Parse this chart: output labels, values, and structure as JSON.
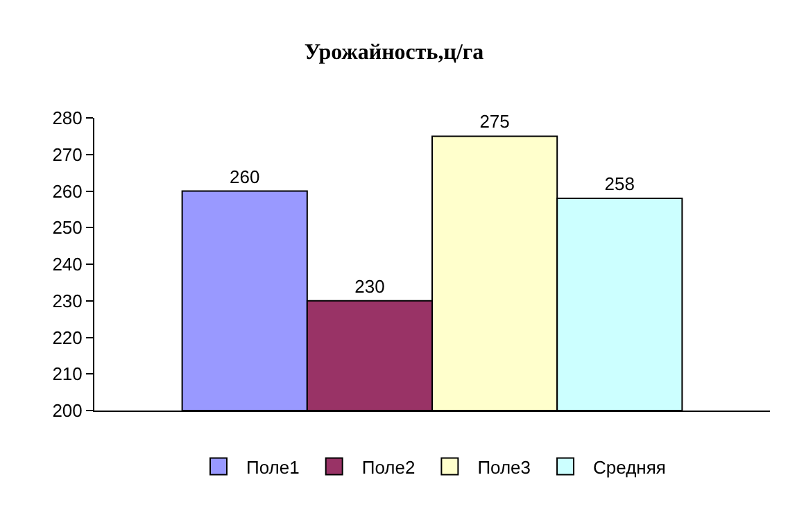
{
  "chart_data": {
    "type": "bar",
    "title": "Урожайность,ц/га",
    "categories": [
      null
    ],
    "series": [
      {
        "name": "Поле1",
        "color": "#9999ff",
        "values": [
          260
        ]
      },
      {
        "name": "Поле2",
        "color": "#993366",
        "values": [
          230
        ]
      },
      {
        "name": "Поле3",
        "color": "#ffffcc",
        "values": [
          275
        ]
      },
      {
        "name": "Средняя",
        "color": "#ccffff",
        "values": [
          258
        ]
      }
    ],
    "ylim": [
      200,
      280
    ],
    "yticks": [
      200,
      210,
      220,
      230,
      240,
      250,
      260,
      270,
      280
    ],
    "grid": false,
    "legend": "bottom",
    "data_labels": true
  }
}
